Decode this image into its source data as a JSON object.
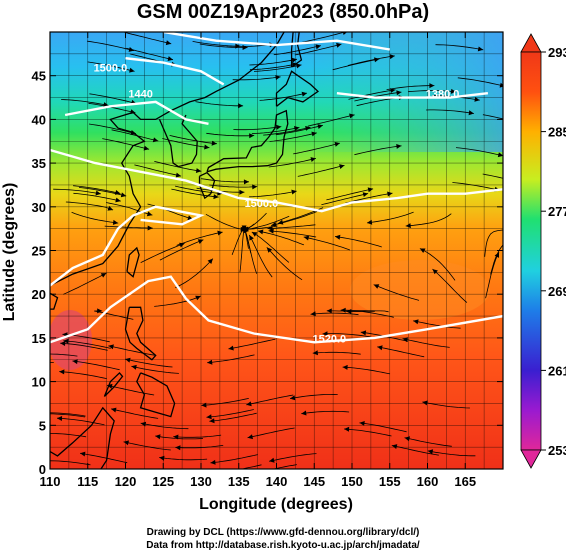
{
  "title": "GSM 00Z19Apr2023 (850.0hPa)",
  "map": {
    "xlabel": "Longitude (degrees)",
    "ylabel": "Latitude  (degrees)",
    "xlim": [
      110,
      170
    ],
    "ylim": [
      0,
      50
    ],
    "x_ticks": [
      "110",
      "115",
      "120",
      "125",
      "130",
      "135",
      "140",
      "145",
      "150",
      "155",
      "160",
      "165"
    ],
    "y_ticks": [
      "0",
      "5",
      "10",
      "15",
      "20",
      "25",
      "30",
      "35",
      "40",
      "45"
    ],
    "grid": true,
    "field": "temperature (K)",
    "overlay": "streamlines and geopotential height contours"
  },
  "colorbar": {
    "min": 253,
    "max": 293,
    "labels": [
      "293",
      "285",
      "277",
      "269",
      "261",
      "253"
    ],
    "colors": [
      "#e0279a",
      "#3a1fd0",
      "#1e7de8",
      "#20d0e0",
      "#20e070",
      "#c8ee20",
      "#ffb000",
      "#ff5010",
      "#f03818"
    ]
  },
  "contours": [
    {
      "label": "1500.0",
      "value": 1500,
      "lon": 118,
      "lat": 45.5
    },
    {
      "label": "1440",
      "value": 1440,
      "lon": 122,
      "lat": 42.5
    },
    {
      "label": "1380.0",
      "value": 1380,
      "lon": 162,
      "lat": 42.5
    },
    {
      "label": "1500.0",
      "value": 1500,
      "lon": 138,
      "lat": 30
    },
    {
      "label": "1520.0",
      "value": 1520,
      "lon": 147,
      "lat": 14.5
    }
  ],
  "credits": {
    "line1": "Drawing by DCL (https://www.gfd-dennou.org/library/dcl/)",
    "line2": "Data from http://database.rish.kyoto-u.ac.jp/arch/jmadata/"
  }
}
